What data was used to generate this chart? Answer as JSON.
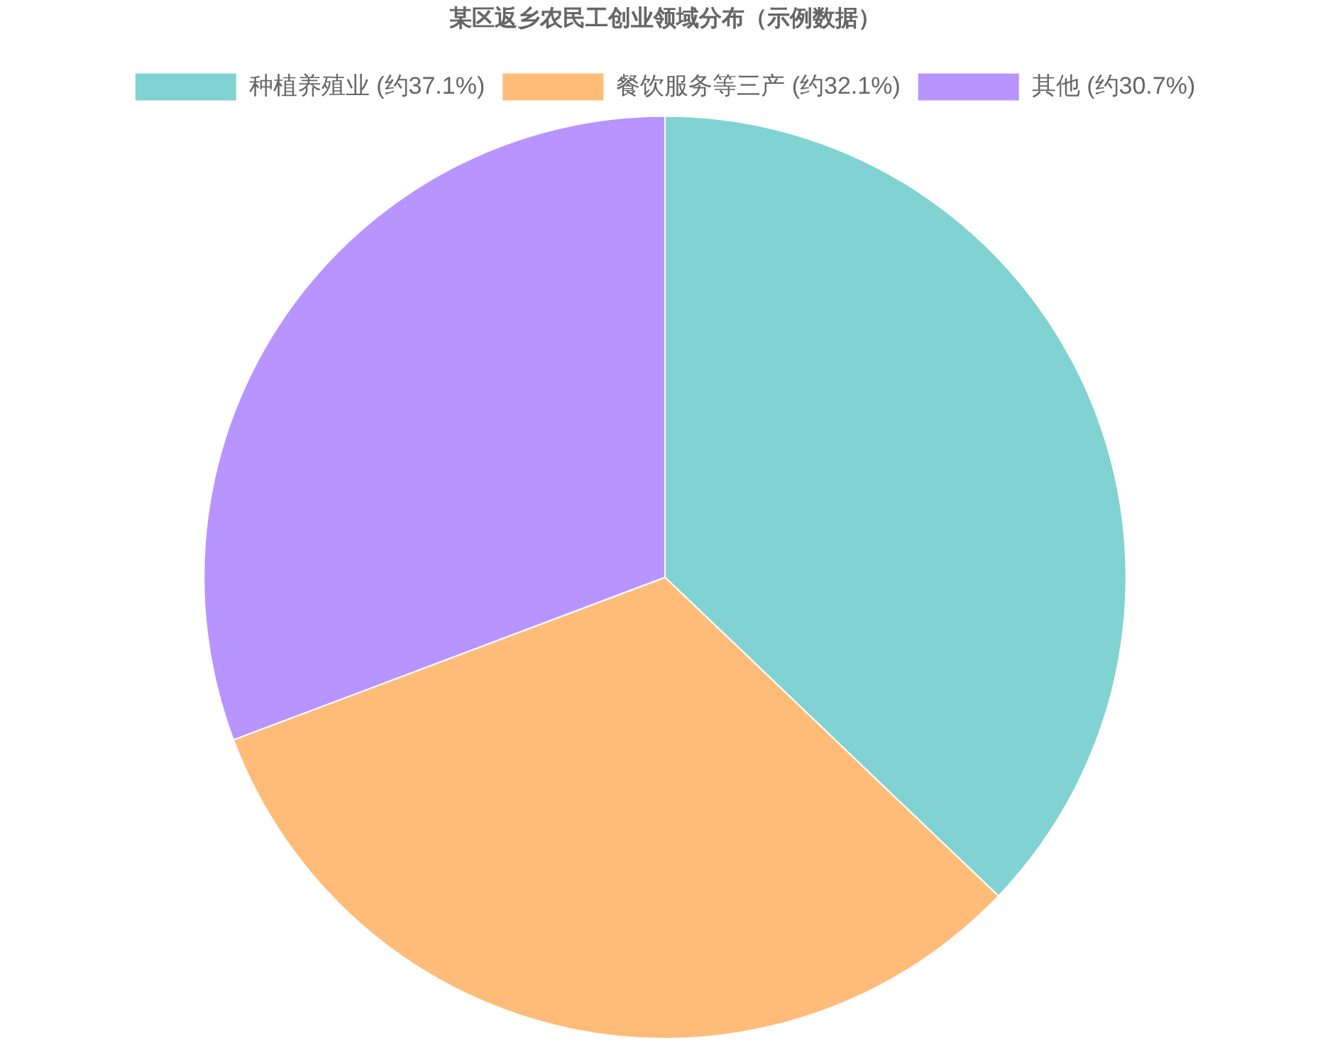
{
  "chart_data": {
    "type": "pie",
    "title": "某区返乡农民工创业领域分布（示例数据）",
    "categories": [
      "种植养殖业 (约37.1%)",
      "餐饮服务等三产 (约32.1%)",
      "其他 (约30.7%)"
    ],
    "values": [
      37.1,
      32.1,
      30.7
    ],
    "colors": [
      "#81d3d3",
      "#ffbc79",
      "#b894ff"
    ],
    "legend": "top"
  }
}
